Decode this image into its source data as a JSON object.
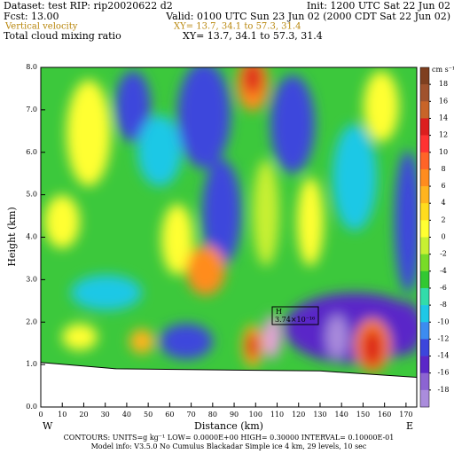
{
  "header": {
    "dataset": "Dataset: test  RIP: rip20020622 d2",
    "init": "Init: 1200 UTC Sat 22 Jun 02",
    "fcst": "Fcst:    13.00",
    "valid": "Valid: 0100 UTC Sun 23 Jun 02 (2000 CDT Sat 22 Jun 02)",
    "field1": "Vertical velocity",
    "xy1": "XY=  13.7, 34.1 to  57.3, 31.4",
    "field2": "Total cloud mixing ratio",
    "xy2": "XY=  13.7, 34.1 to  57.3, 31.4"
  },
  "chart_data": {
    "type": "cross_section",
    "xlabel": "Distance (km)",
    "ylabel": "Height (km)",
    "x_end_labels": [
      "W",
      "E"
    ],
    "xlim": [
      0,
      175
    ],
    "ylim": [
      0,
      8
    ],
    "xticks": [
      0,
      10,
      20,
      30,
      40,
      50,
      60,
      70,
      80,
      90,
      100,
      110,
      120,
      130,
      140,
      150,
      160,
      170
    ],
    "yticks": [
      {
        "value": 0,
        "label": "0.0"
      },
      {
        "value": 1,
        "label": "1.0"
      },
      {
        "value": 2,
        "label": "2.0"
      },
      {
        "value": 3,
        "label": "3.0"
      },
      {
        "value": 4,
        "label": "4.0"
      },
      {
        "value": 5,
        "label": "5.0"
      },
      {
        "value": 6,
        "label": "6.0"
      },
      {
        "value": 7,
        "label": "7.0"
      },
      {
        "value": 8,
        "label": "8.0"
      }
    ],
    "colorbar": {
      "units": "cm s⁻¹",
      "ticks": [
        18,
        16,
        14,
        12,
        10,
        8,
        6,
        4,
        2,
        0,
        -2,
        -4,
        -6,
        -8,
        -10,
        -12,
        -14,
        -16,
        -18
      ],
      "colors": [
        "#7f3f1f",
        "#a0522d",
        "#c86428",
        "#dc1e1e",
        "#ff3232",
        "#ff6428",
        "#ff8c1e",
        "#ffb41e",
        "#ffdc1e",
        "#ffff32",
        "#c8f032",
        "#78dc28",
        "#32c832",
        "#32dcaa",
        "#1ec8e6",
        "#3c8cf0",
        "#3c46dc",
        "#5a28c8",
        "#8c64d2",
        "#aa8cdc"
      ]
    },
    "terrain": {
      "x": [
        0,
        35,
        90,
        130,
        175
      ],
      "values": [
        1.05,
        0.9,
        0.87,
        0.85,
        0.7
      ]
    },
    "annotation": {
      "label": "H",
      "text": "3.74×10⁻¹⁶"
    }
  },
  "footer": {
    "contours": "CONTOURS:  UNITS=g kg⁻¹  LOW= 0.0000E+00  HIGH= 0.30000      INTERVAL=  0.10000E-01",
    "model": "Model info: V3.5.0 No Cumulus Blackadar  Simple ice     4 km,  29 levels,  10 sec"
  }
}
